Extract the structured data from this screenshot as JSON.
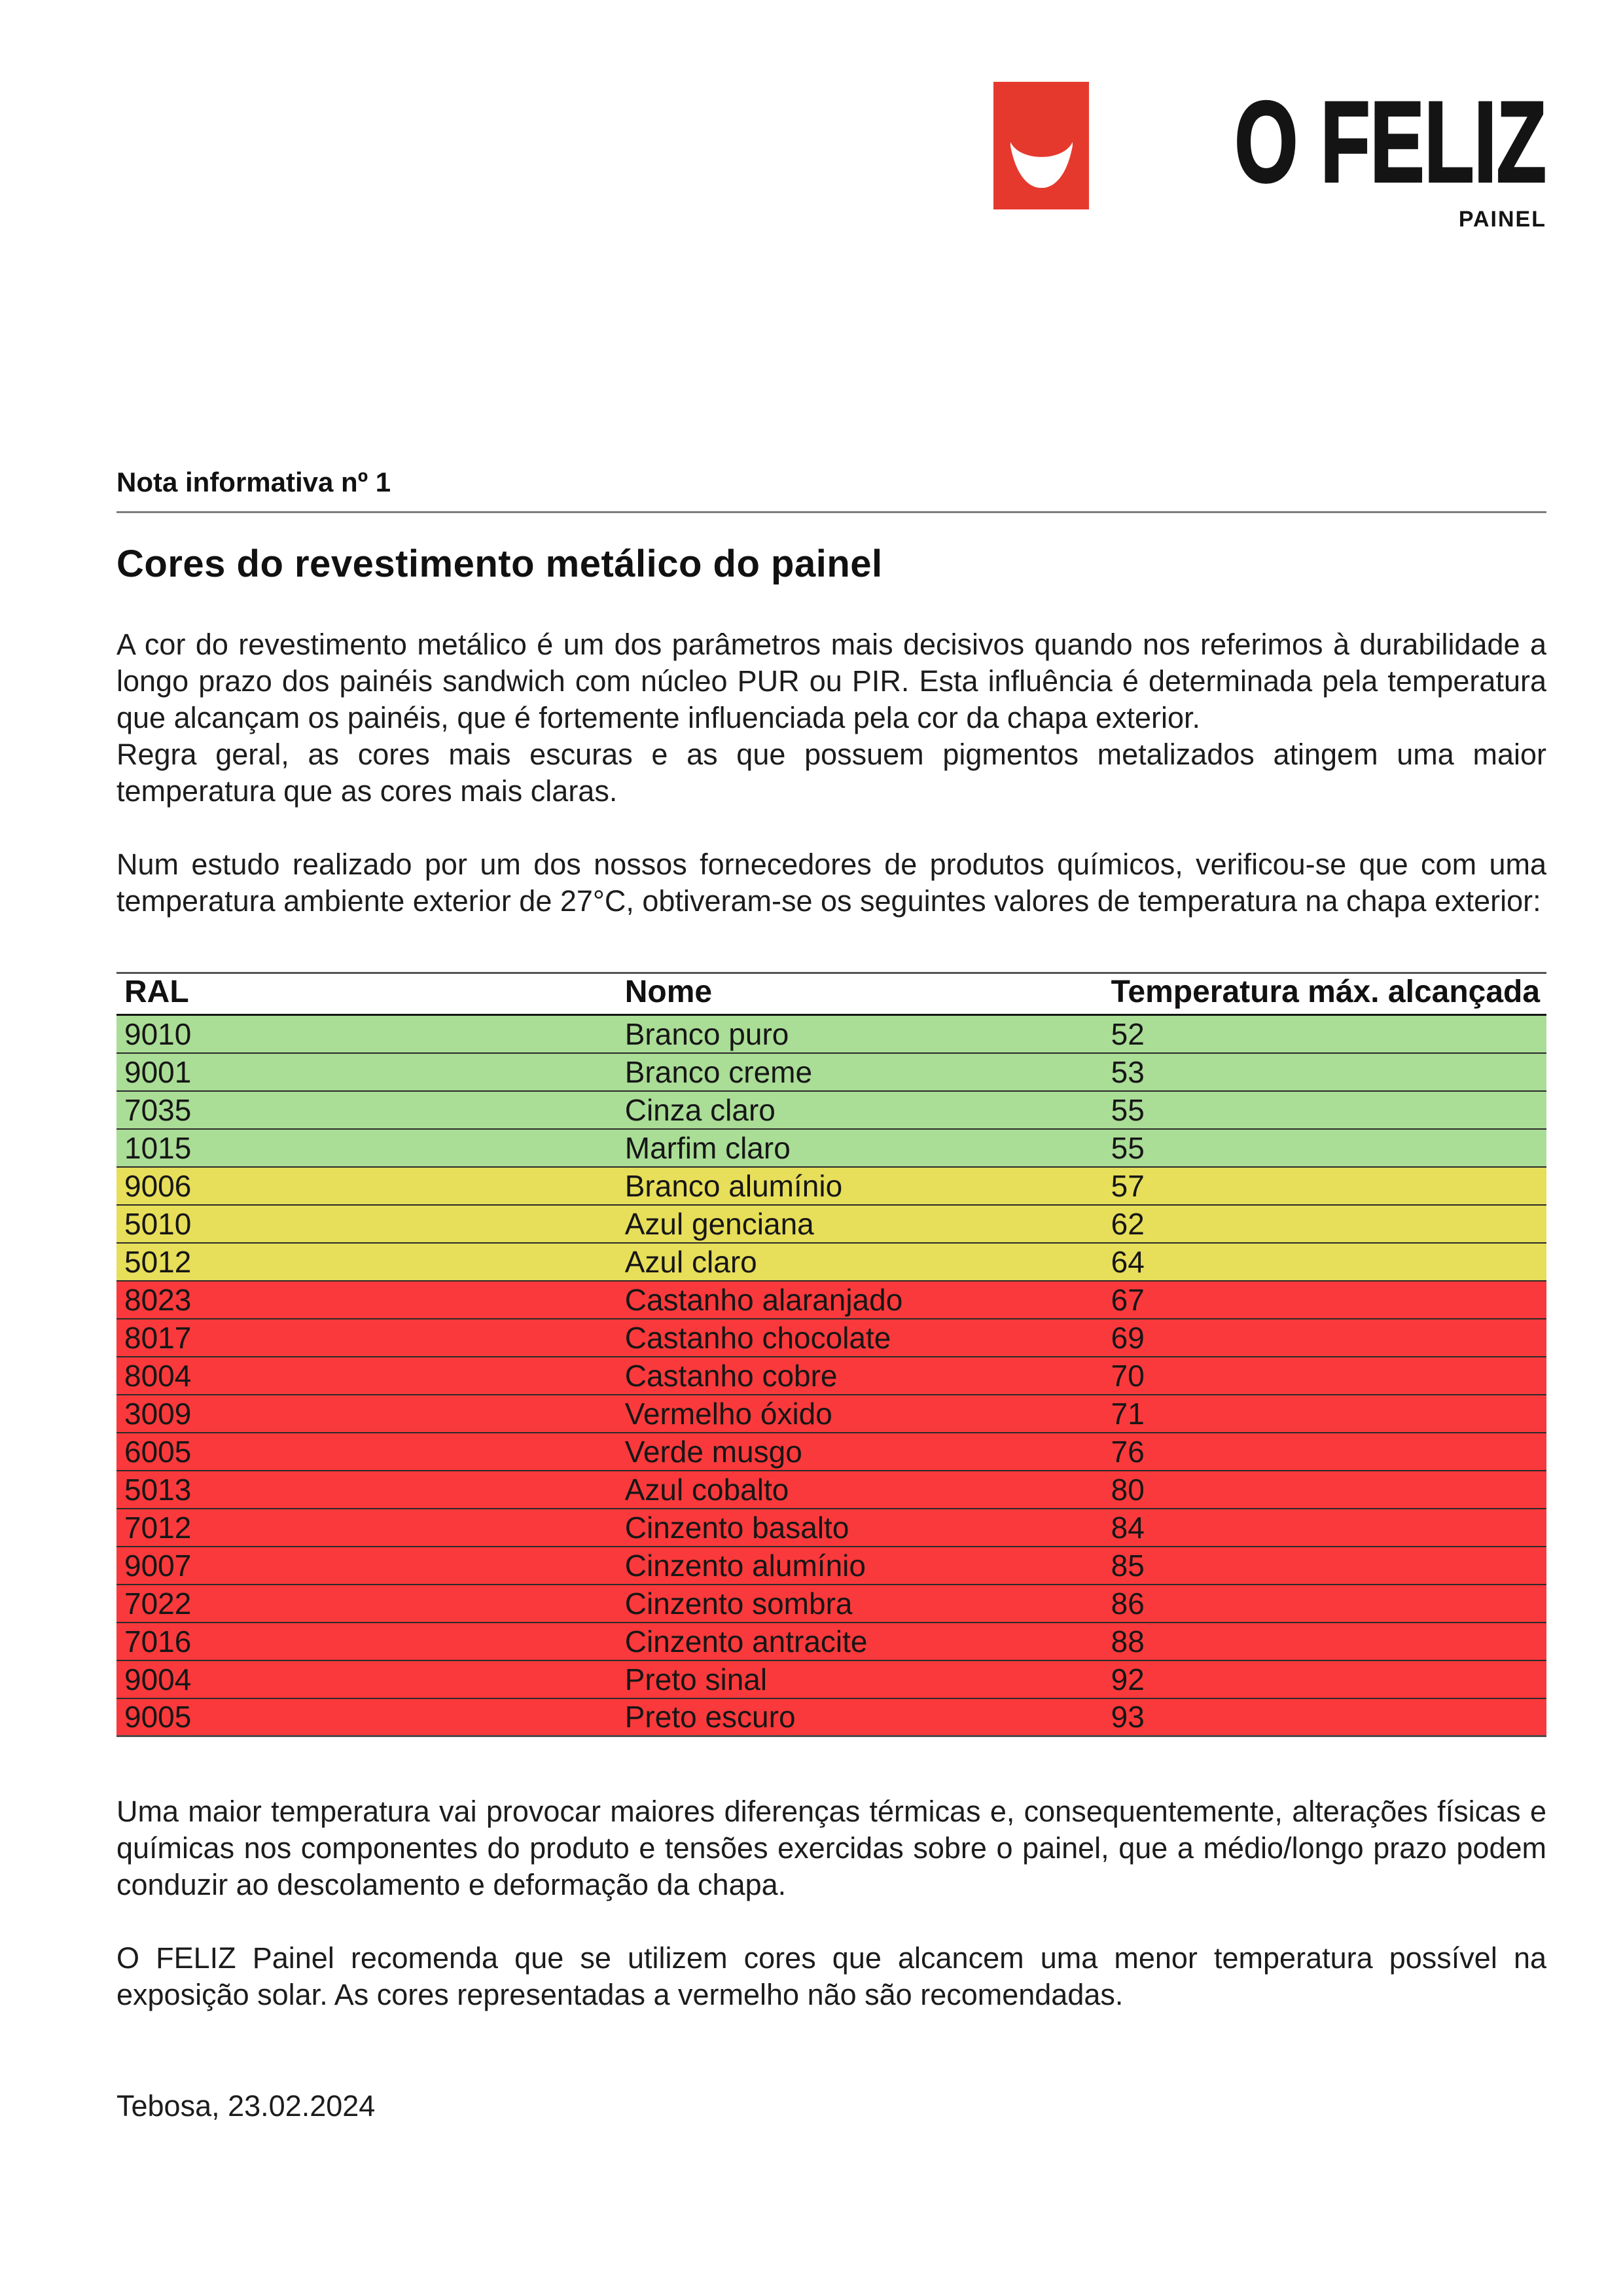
{
  "logo": {
    "brand": "O FELIZ",
    "sub": "PAINEL",
    "mark_color": "#e6392e",
    "smile_icon": "smile-icon"
  },
  "doc": {
    "kicker": "Nota informativa nº 1",
    "title": "Cores do revestimento metálico do painel",
    "para1a": "A cor do revestimento metálico é um dos parâmetros mais decisivos quando nos referimos à durabilidade a longo prazo dos painéis sandwich com núcleo PUR ou PIR. Esta influência é determinada pela temperatura que alcançam os painéis, que é fortemente influenciada pela cor da chapa exterior.",
    "para1b": "Regra geral, as cores mais escuras e as que possuem pigmentos metalizados atingem uma maior temperatura que as cores mais claras.",
    "para2": "Num estudo realizado por um dos nossos fornecedores de produtos químicos, verificou-se que com uma temperatura ambiente exterior de 27°C, obtiveram-se os seguintes valores de temperatura na chapa exterior:",
    "para3": "Uma maior temperatura vai provocar maiores diferenças térmicas e, consequentemente, alterações físicas e químicas nos componentes do produto e tensões exercidas sobre o painel, que a médio/longo prazo podem conduzir ao descolamento e deformação da chapa.",
    "para4": "O FELIZ Painel recomenda que se utilizem cores que alcancem uma menor temperatura possível na exposição solar. As cores representadas a vermelho não são recomendadas.",
    "signoff": "Tebosa, 23.02.2024"
  },
  "table": {
    "headers": [
      "RAL",
      "Nome",
      "Temperatura máx. alcançada"
    ],
    "zone_colors": {
      "green": "#aadd96",
      "yellow": "#e7de5a",
      "red": "#f9393b"
    },
    "rows": [
      {
        "ral": "9010",
        "nome": "Branco puro",
        "temp": "52",
        "zone": "green"
      },
      {
        "ral": "9001",
        "nome": "Branco creme",
        "temp": "53",
        "zone": "green"
      },
      {
        "ral": "7035",
        "nome": "Cinza claro",
        "temp": "55",
        "zone": "green"
      },
      {
        "ral": "1015",
        "nome": "Marfim claro",
        "temp": "55",
        "zone": "green"
      },
      {
        "ral": "9006",
        "nome": "Branco alumínio",
        "temp": "57",
        "zone": "yellow"
      },
      {
        "ral": "5010",
        "nome": "Azul genciana",
        "temp": "62",
        "zone": "yellow"
      },
      {
        "ral": "5012",
        "nome": "Azul claro",
        "temp": "64",
        "zone": "yellow"
      },
      {
        "ral": "8023",
        "nome": "Castanho alaranjado",
        "temp": "67",
        "zone": "red"
      },
      {
        "ral": "8017",
        "nome": "Castanho chocolate",
        "temp": "69",
        "zone": "red"
      },
      {
        "ral": "8004",
        "nome": "Castanho cobre",
        "temp": "70",
        "zone": "red"
      },
      {
        "ral": "3009",
        "nome": "Vermelho óxido",
        "temp": "71",
        "zone": "red"
      },
      {
        "ral": "6005",
        "nome": "Verde musgo",
        "temp": "76",
        "zone": "red"
      },
      {
        "ral": "5013",
        "nome": "Azul cobalto",
        "temp": "80",
        "zone": "red"
      },
      {
        "ral": "7012",
        "nome": "Cinzento basalto",
        "temp": "84",
        "zone": "red"
      },
      {
        "ral": "9007",
        "nome": "Cinzento alumínio",
        "temp": "85",
        "zone": "red"
      },
      {
        "ral": "7022",
        "nome": "Cinzento sombra",
        "temp": "86",
        "zone": "red"
      },
      {
        "ral": "7016",
        "nome": "Cinzento antracite",
        "temp": "88",
        "zone": "red"
      },
      {
        "ral": "9004",
        "nome": "Preto sinal",
        "temp": "92",
        "zone": "red"
      },
      {
        "ral": "9005",
        "nome": "Preto escuro",
        "temp": "93",
        "zone": "red"
      }
    ]
  }
}
